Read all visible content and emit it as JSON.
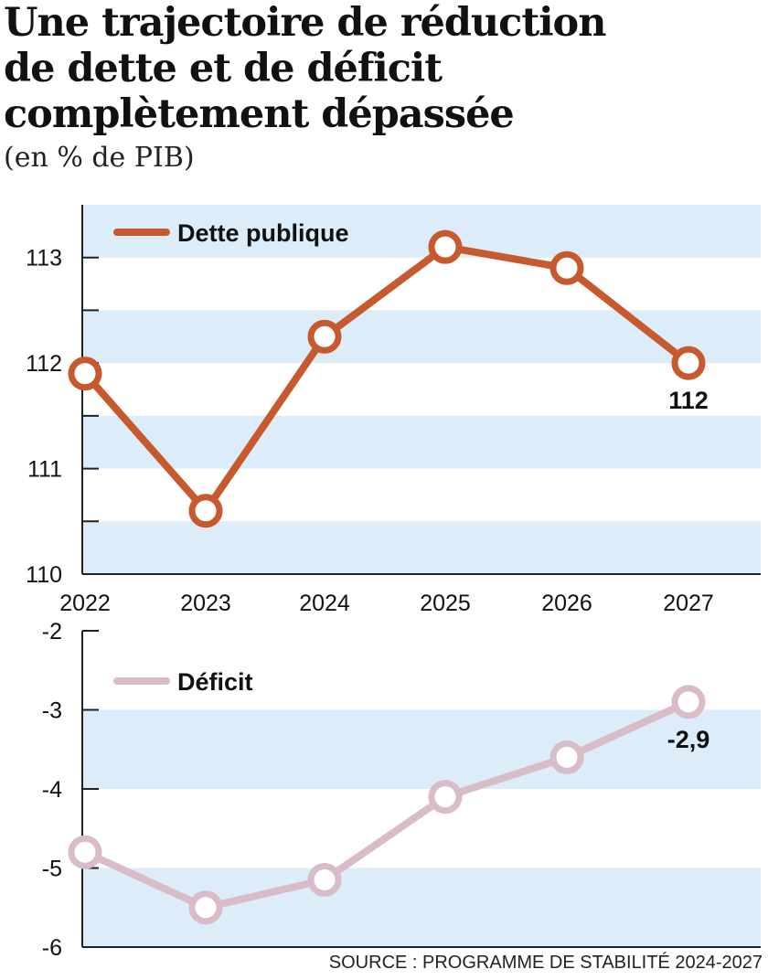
{
  "title_lines": [
    "Une trajectoire de réduction",
    "de dette et de déficit",
    "complètement dépassée"
  ],
  "subtitle": "(en % de PIB)",
  "source": "SOURCE : PROGRAMME DE STABILITÉ 2024-2027",
  "colors": {
    "debt": "#c65a2e",
    "deficit": "#d8bcc8",
    "band": "#dcecf8",
    "axis": "#222222"
  },
  "chart_data": [
    {
      "type": "line",
      "categories": [
        "2022",
        "2023",
        "2024",
        "2025",
        "2026",
        "2027"
      ],
      "series": [
        {
          "name": "Dette publique",
          "values": [
            111.9,
            110.6,
            112.25,
            113.1,
            112.9,
            112.0
          ]
        }
      ],
      "ylim": [
        110,
        113.5
      ],
      "yticks": [
        "110",
        "111",
        "112",
        "113"
      ],
      "data_labels": [
        {
          "index": 5,
          "text": "112"
        }
      ],
      "legend": "top-left",
      "grid": "alternating bands"
    },
    {
      "type": "line",
      "categories": [
        "2022",
        "2023",
        "2024",
        "2025",
        "2026",
        "2027"
      ],
      "series": [
        {
          "name": "Déficit",
          "values": [
            -4.8,
            -5.5,
            -5.15,
            -4.1,
            -3.6,
            -2.9
          ]
        }
      ],
      "ylim": [
        -6,
        -2
      ],
      "yticks": [
        "-2",
        "-3",
        "-4",
        "-5",
        "-6"
      ],
      "data_labels": [
        {
          "index": 5,
          "text": "-2,9"
        }
      ],
      "legend": "top-left",
      "grid": "alternating bands"
    }
  ]
}
